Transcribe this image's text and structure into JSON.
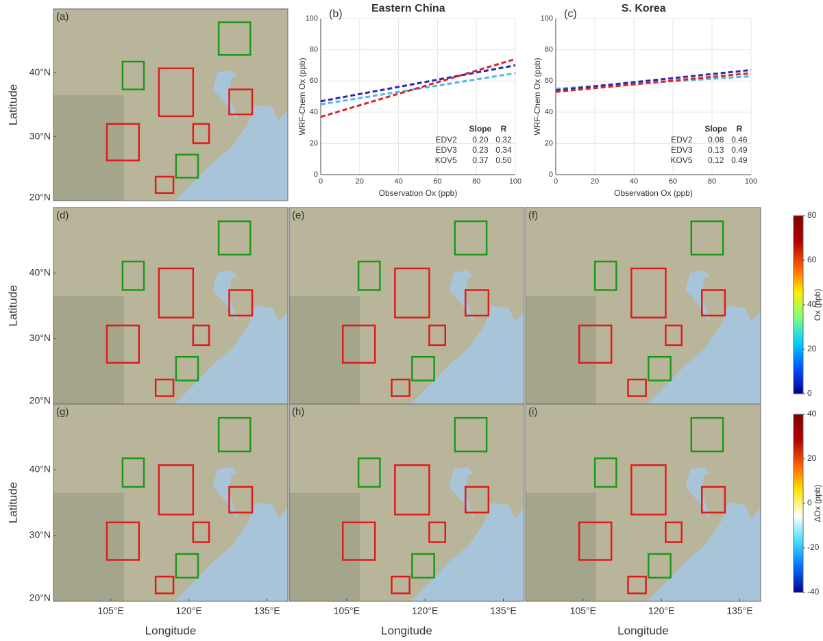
{
  "chart_data": [
    {
      "type": "map",
      "label": "(a)",
      "xlim": [
        94,
        139
      ],
      "ylim": [
        20,
        50
      ],
      "ylabel": "Latitude",
      "yticks": [
        {
          "value": 20,
          "label": "20°N"
        },
        {
          "value": 30,
          "label": "30°N"
        },
        {
          "value": 40,
          "label": "40°N"
        }
      ]
    },
    {
      "type": "scatter",
      "label": "(b)",
      "title": "Eastern China",
      "xlabel": "Observation Ox (ppb)",
      "ylabel": "WRF-Chem Ox (ppb)",
      "xlim": [
        0,
        100
      ],
      "ylim": [
        0,
        100
      ],
      "xticks": [
        0,
        20,
        40,
        60,
        80,
        100
      ],
      "yticks": [
        0,
        20,
        40,
        60,
        80,
        100
      ],
      "grid": true,
      "stats_header": [
        "Slope",
        "R"
      ],
      "series": [
        {
          "name": "EDV2",
          "color": "#4fb8e6",
          "x": [
            0,
            100
          ],
          "values": [
            45,
            65
          ],
          "stats": [
            "0.20",
            "0.32"
          ]
        },
        {
          "name": "EDV3",
          "color": "#2a2aa8",
          "x": [
            0,
            100
          ],
          "values": [
            47,
            70
          ],
          "stats": [
            "0.23",
            "0.34"
          ]
        },
        {
          "name": "KOV5",
          "color": "#e0202a",
          "x": [
            0,
            100
          ],
          "values": [
            37,
            74
          ],
          "stats": [
            "0.37",
            "0.50"
          ]
        }
      ]
    },
    {
      "type": "scatter",
      "label": "(c)",
      "title": "S. Korea",
      "xlabel": "Observation Ox (ppb)",
      "ylabel": "WRF-Chem Ox (ppb)",
      "xlim": [
        0,
        100
      ],
      "ylim": [
        0,
        100
      ],
      "xticks": [
        0,
        20,
        40,
        60,
        80,
        100
      ],
      "yticks": [
        0,
        20,
        40,
        60,
        80,
        100
      ],
      "grid": true,
      "stats_header": [
        "Slope",
        "R"
      ],
      "series": [
        {
          "name": "EDV2",
          "color": "#4fb8e6",
          "x": [
            0,
            100
          ],
          "values": [
            55,
            63
          ],
          "stats": [
            "0.08",
            "0.46"
          ]
        },
        {
          "name": "EDV3",
          "color": "#2a2aa8",
          "x": [
            0,
            100
          ],
          "values": [
            54,
            67
          ],
          "stats": [
            "0.13",
            "0.49"
          ]
        },
        {
          "name": "KOV5",
          "color": "#e0202a",
          "x": [
            0,
            100
          ],
          "values": [
            53,
            65
          ],
          "stats": [
            "0.12",
            "0.49"
          ]
        }
      ]
    },
    {
      "type": "map",
      "label": "(d)",
      "xlim": [
        94,
        139
      ],
      "ylim": [
        20,
        50
      ],
      "ylabel": "Latitude",
      "yticks": [
        {
          "value": 20,
          "label": "20°N"
        },
        {
          "value": 30,
          "label": "30°N"
        },
        {
          "value": 40,
          "label": "40°N"
        }
      ]
    },
    {
      "type": "map",
      "label": "(e)",
      "xlim": [
        94,
        139
      ],
      "ylim": [
        20,
        50
      ]
    },
    {
      "type": "map",
      "label": "(f)",
      "xlim": [
        94,
        139
      ],
      "ylim": [
        20,
        50
      ]
    },
    {
      "type": "map",
      "label": "(g)",
      "xlim": [
        94,
        139
      ],
      "ylim": [
        20,
        50
      ],
      "ylabel": "Latitude",
      "xlabel": "Longitude",
      "yticks": [
        {
          "value": 20,
          "label": "20°N"
        },
        {
          "value": 30,
          "label": "30°N"
        },
        {
          "value": 40,
          "label": "40°N"
        }
      ],
      "xticks": [
        {
          "value": 105,
          "label": "105°E"
        },
        {
          "value": 120,
          "label": "120°E"
        },
        {
          "value": 135,
          "label": "135°E"
        }
      ]
    },
    {
      "type": "map",
      "label": "(h)",
      "xlim": [
        94,
        139
      ],
      "ylim": [
        20,
        50
      ],
      "xlabel": "Longitude",
      "xticks": [
        {
          "value": 105,
          "label": "105°E"
        },
        {
          "value": 120,
          "label": "120°E"
        },
        {
          "value": 135,
          "label": "135°E"
        }
      ]
    },
    {
      "type": "map",
      "label": "(i)",
      "xlim": [
        94,
        139
      ],
      "ylim": [
        20,
        50
      ],
      "xlabel": "Longitude",
      "xticks": [
        {
          "value": 105,
          "label": "105°E"
        },
        {
          "value": 120,
          "label": "120°E"
        },
        {
          "value": 135,
          "label": "135°E"
        }
      ]
    },
    {
      "type": "colorbar",
      "label": "Ox (ppb)",
      "lim": [
        0,
        80
      ],
      "ticks": [
        0,
        20,
        40,
        60,
        80
      ],
      "colors": [
        "#00008f",
        "#0050ff",
        "#00d0ff",
        "#7fff7f",
        "#ffee00",
        "#ff5a00",
        "#b00000",
        "#800000"
      ]
    },
    {
      "type": "colorbar",
      "label": "ΔOx (ppb)",
      "lim": [
        -40,
        40
      ],
      "ticks": [
        -40,
        -20,
        0,
        20,
        40
      ],
      "colors": [
        "#00008f",
        "#0070ff",
        "#40e0ff",
        "#ffffff",
        "#ffe800",
        "#ff6000",
        "#b00000",
        "#800000"
      ]
    }
  ]
}
